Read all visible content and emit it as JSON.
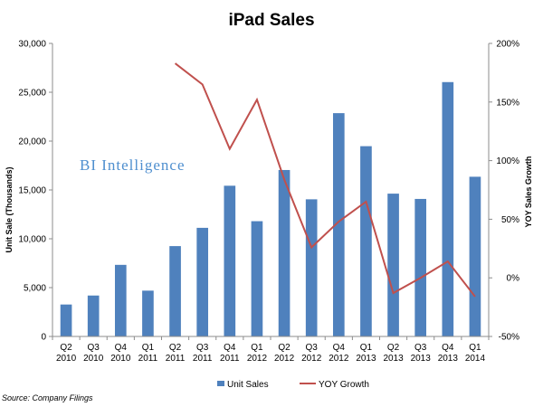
{
  "chart_data": {
    "type": "bar",
    "title": "iPad Sales",
    "categories": [
      [
        "Q2",
        "2010"
      ],
      [
        "Q3",
        "2010"
      ],
      [
        "Q4",
        "2010"
      ],
      [
        "Q1",
        "2011"
      ],
      [
        "Q2",
        "2011"
      ],
      [
        "Q3",
        "2011"
      ],
      [
        "Q4",
        "2011"
      ],
      [
        "Q1",
        "2012"
      ],
      [
        "Q2",
        "2012"
      ],
      [
        "Q3",
        "2012"
      ],
      [
        "Q4",
        "2012"
      ],
      [
        "Q1",
        "2013"
      ],
      [
        "Q2",
        "2013"
      ],
      [
        "Q3",
        "2013"
      ],
      [
        "Q4",
        "2013"
      ],
      [
        "Q1",
        "2014"
      ]
    ],
    "series": [
      {
        "name": "Unit Sales",
        "type": "bar",
        "axis": "left",
        "color": "#4f81bd",
        "values": [
          3270,
          4190,
          7330,
          4690,
          9250,
          11120,
          15430,
          11800,
          17040,
          14040,
          22860,
          19480,
          14620,
          14080,
          26040,
          16350
        ]
      },
      {
        "name": "YOY Growth",
        "type": "line",
        "axis": "right",
        "color": "#c0504d",
        "values": [
          null,
          null,
          null,
          null,
          183,
          165,
          110,
          152,
          84,
          26,
          48,
          65,
          -13,
          0,
          14,
          -16
        ]
      }
    ],
    "ylabel": "Unit Sale (Thousands)",
    "ylim": [
      0,
      30000
    ],
    "yticks": [
      0,
      5000,
      10000,
      15000,
      20000,
      25000,
      30000
    ],
    "ytick_labels": [
      "0",
      "5,000",
      "10,000",
      "15,000",
      "20,000",
      "25,000",
      "30,000"
    ],
    "y2label": "YOY Sales Growth",
    "y2lim": [
      -50,
      200
    ],
    "y2ticks": [
      -50,
      0,
      50,
      100,
      150,
      200
    ],
    "y2tick_labels": [
      "-50%",
      "0%",
      "50%",
      "100%",
      "150%",
      "200%"
    ],
    "grid": false,
    "legend": "bottom",
    "watermark": "BI Intelligence",
    "source": "Source: Company Filings"
  }
}
